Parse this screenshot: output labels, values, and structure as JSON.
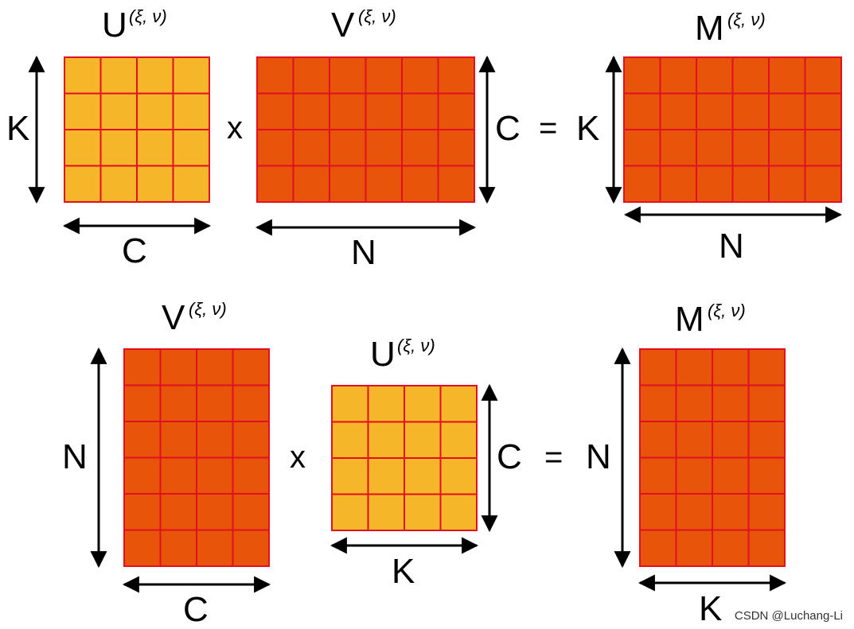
{
  "colors": {
    "yellow_fill": "#F6B629",
    "orange_fill": "#E8540A",
    "grid_stroke": "#E01020",
    "arrow": "#000000"
  },
  "row1": {
    "left": {
      "name": "U",
      "superscript": "(ξ, ν)",
      "rows": 4,
      "cols": 4,
      "fill": "yellow",
      "side_label": "K",
      "bottom_label": "C"
    },
    "op1": "x",
    "mid": {
      "name": "V",
      "superscript": "(ξ, ν)",
      "rows": 4,
      "cols": 6,
      "fill": "orange",
      "right_label": "C",
      "bottom_label": "N"
    },
    "op2": "=",
    "result": {
      "name": "M",
      "superscript": "(ξ, ν)",
      "rows": 4,
      "cols": 6,
      "fill": "orange",
      "side_label": "K",
      "bottom_label": "N"
    }
  },
  "row2": {
    "left": {
      "name": "V",
      "superscript": "(ξ, ν)",
      "rows": 6,
      "cols": 4,
      "fill": "orange",
      "side_label": "N",
      "bottom_label": "C"
    },
    "op1": "x",
    "mid": {
      "name": "U",
      "superscript": "(ξ, ν)",
      "rows": 4,
      "cols": 4,
      "fill": "yellow",
      "right_label": "C",
      "bottom_label": "K"
    },
    "op2": "=",
    "result": {
      "name": "M",
      "superscript": "(ξ, ν)",
      "rows": 6,
      "cols": 4,
      "fill": "orange",
      "side_label": "N",
      "bottom_label": "K"
    }
  },
  "watermark": "CSDN @Luchang-Li"
}
